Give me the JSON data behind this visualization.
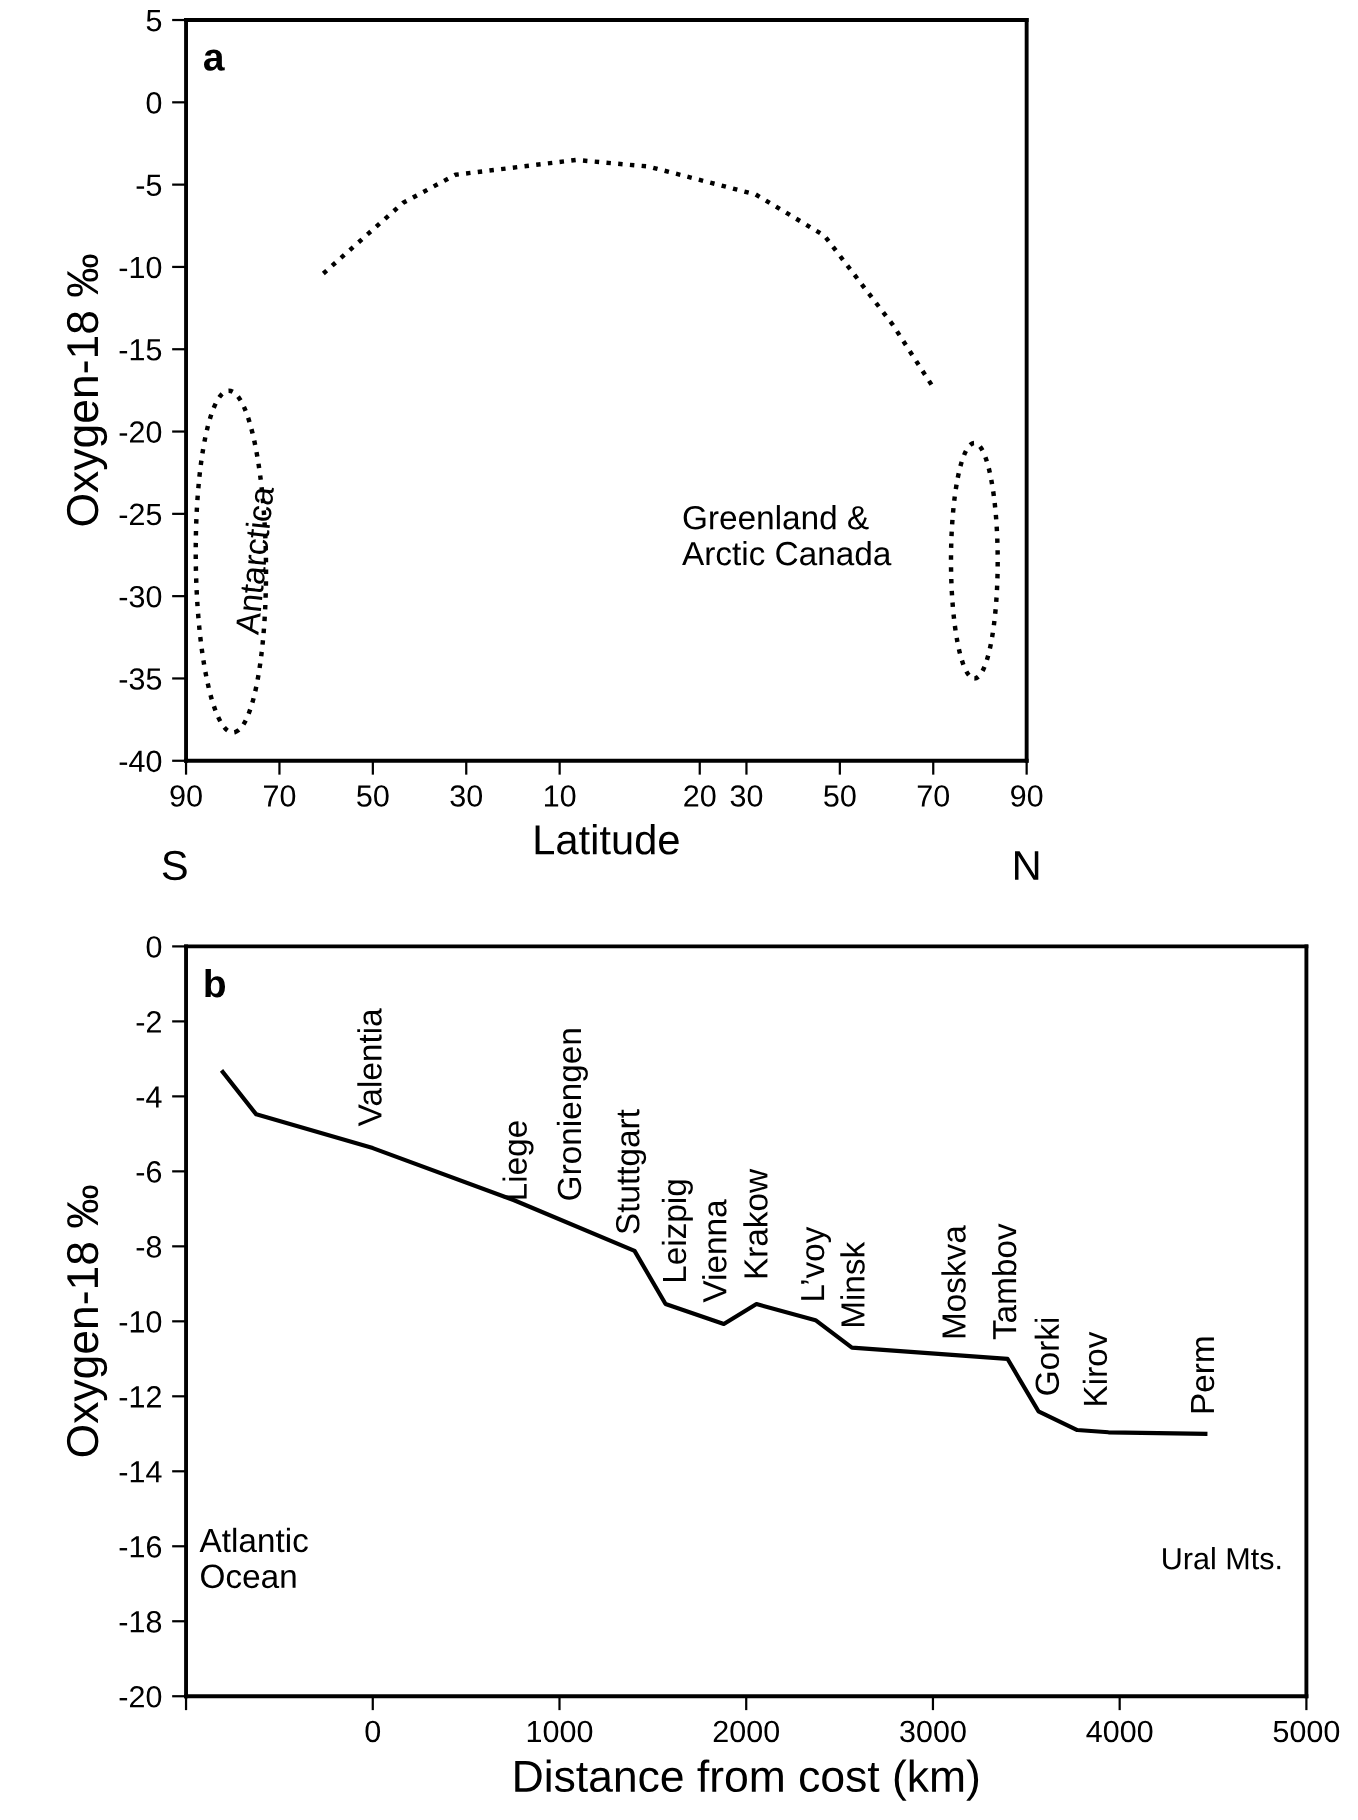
{
  "chart_data": [
    {
      "type": "line",
      "xlabel": "Latitude",
      "ylabel": "Oxygen-18 ‰",
      "line_style": "dotted",
      "marker": "none",
      "xlim": [
        -90,
        90
      ],
      "xticks": [
        {
          "value": -90,
          "label": "90"
        },
        {
          "value": -70,
          "label": "70"
        },
        {
          "value": -50,
          "label": "50"
        },
        {
          "value": -30,
          "label": "30"
        },
        {
          "value": -10,
          "label": "10"
        },
        {
          "value": 20,
          "label": "20"
        },
        {
          "value": 30,
          "label": "30"
        },
        {
          "value": 50,
          "label": "50"
        },
        {
          "value": 70,
          "label": "70"
        },
        {
          "value": 90,
          "label": "90"
        }
      ],
      "ylim": [
        -40,
        5
      ],
      "yticks": [
        -40,
        -35,
        -30,
        -25,
        -20,
        -15,
        -10,
        -5,
        0,
        5
      ],
      "x": [
        -60.6,
        -43.5,
        -32.3,
        -6.5,
        9,
        32,
        46.7,
        61.3,
        70.4
      ],
      "series": [
        {
          "color": "#000000",
          "values": [
            -10.4,
            -6.1,
            -4.4,
            -3.5,
            -3.9,
            -5.6,
            -8.1,
            -13.5,
            -17.5
          ]
        }
      ],
      "annotations": [
        "a",
        "Antarctica",
        "Greenland &\nArctic Canada",
        "S",
        "N"
      ],
      "grid": false,
      "legend": false
    },
    {
      "type": "line",
      "xlabel": "Distance from cost (km)",
      "ylabel": "Oxygen-18 ‰",
      "line_style": "solid",
      "marker": "none",
      "xlim": [
        -1000,
        5000
      ],
      "xticks": [
        {
          "value": -1000,
          "label": null
        },
        0,
        1000,
        2000,
        3000,
        4000,
        5000
      ],
      "ylim": [
        -20,
        0
      ],
      "yticks": [
        -20,
        -18,
        -16,
        -14,
        -12,
        -10,
        -8,
        -6,
        -4,
        -2,
        0
      ],
      "x": [
        -803,
        -624,
        0,
        757,
        1402,
        1568,
        1880,
        2055,
        2371,
        2566,
        3399,
        3565,
        3773,
        3940,
        4459
      ],
      "series": [
        {
          "color": "#000000",
          "values": [
            -3.35,
            -4.48,
            -5.38,
            -6.77,
            -8.12,
            -9.54,
            -10.07,
            -9.54,
            -9.97,
            -10.7,
            -11.0,
            -12.4,
            -12.9,
            -12.96,
            -13.0
          ]
        }
      ],
      "annotations": [
        "b",
        "Atlantic\nOcean",
        "Ural Mts.",
        "Valentia",
        "Liege",
        "Groniengen",
        "Stuttgart",
        "Leizpig",
        "Vienna",
        "Krakow",
        "L’voy",
        "Minsk",
        "Moskva",
        "Tambov",
        "Gorki",
        "Kirov",
        "Perm"
      ],
      "grid": false,
      "legend": false
    }
  ]
}
